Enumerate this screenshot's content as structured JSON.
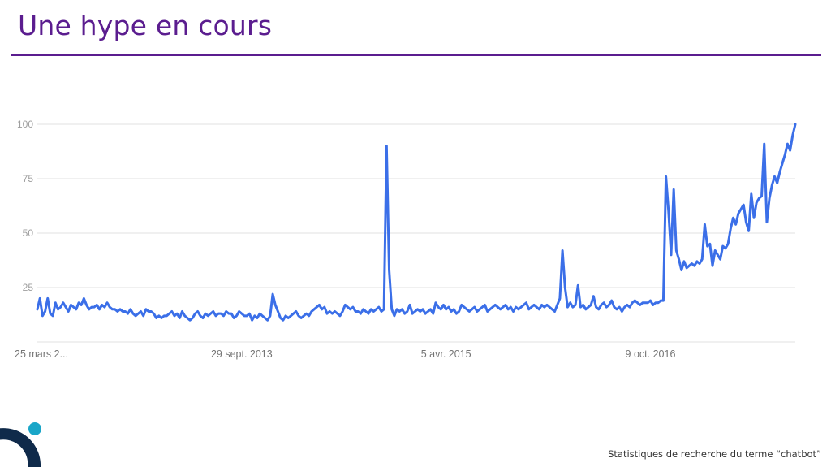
{
  "slide": {
    "title": "Une hype en cours",
    "caption": "Statistiques  de recherche  du terme  “chatbot”"
  },
  "colors": {
    "title": "#5b1d8f",
    "line": "#3b6fe8",
    "grid": "#e0e0e0",
    "logo_dark": "#0f2a4a",
    "logo_accent": "#1aa6c8"
  },
  "chart_data": {
    "type": "line",
    "title": "",
    "xlabel": "",
    "ylabel": "",
    "ylim": [
      0,
      100
    ],
    "yticks": [
      25,
      50,
      75,
      100
    ],
    "grid": true,
    "legend": "none",
    "xtick_labels": [
      {
        "date": "2012-03-25",
        "label": "25 mars 2..."
      },
      {
        "date": "2013-09-29",
        "label": "29 sept. 2013"
      },
      {
        "date": "2015-04-05",
        "label": "5 avr. 2015"
      },
      {
        "date": "2016-10-09",
        "label": "9 oct. 2016"
      }
    ],
    "series": [
      {
        "name": "chatbot",
        "start_date": "2012-03-25",
        "interval": "weekly",
        "values": [
          15,
          20,
          12,
          14,
          20,
          13,
          12,
          18,
          15,
          16,
          18,
          16,
          14,
          17,
          16,
          15,
          18,
          17,
          20,
          17,
          15,
          16,
          16,
          17,
          15,
          17,
          16,
          18,
          16,
          15,
          15,
          14,
          15,
          14,
          14,
          13,
          15,
          13,
          12,
          13,
          14,
          12,
          15,
          14,
          14,
          13,
          11,
          12,
          11,
          12,
          12,
          13,
          14,
          12,
          13,
          11,
          14,
          12,
          11,
          10,
          11,
          13,
          14,
          12,
          11,
          13,
          12,
          13,
          14,
          12,
          13,
          13,
          12,
          14,
          13,
          13,
          11,
          12,
          14,
          13,
          12,
          12,
          13,
          10,
          12,
          11,
          13,
          12,
          11,
          10,
          12,
          22,
          17,
          14,
          11,
          10,
          12,
          11,
          12,
          13,
          14,
          12,
          11,
          12,
          13,
          12,
          14,
          15,
          16,
          17,
          15,
          16,
          13,
          14,
          13,
          14,
          13,
          12,
          14,
          17,
          16,
          15,
          16,
          14,
          14,
          13,
          15,
          14,
          13,
          15,
          14,
          15,
          16,
          14,
          15,
          90,
          33,
          15,
          12,
          15,
          14,
          15,
          13,
          14,
          17,
          13,
          14,
          15,
          14,
          15,
          13,
          14,
          15,
          13,
          18,
          16,
          15,
          17,
          15,
          16,
          14,
          15,
          13,
          14,
          17,
          16,
          15,
          14,
          15,
          16,
          14,
          15,
          16,
          17,
          14,
          15,
          16,
          17,
          16,
          15,
          16,
          17,
          15,
          16,
          14,
          16,
          15,
          16,
          17,
          18,
          15,
          16,
          17,
          16,
          15,
          17,
          16,
          17,
          16,
          15,
          14,
          17,
          20,
          42,
          25,
          16,
          18,
          16,
          17,
          26,
          16,
          17,
          15,
          16,
          17,
          21,
          16,
          15,
          17,
          18,
          16,
          17,
          19,
          16,
          15,
          16,
          14,
          16,
          17,
          16,
          18,
          19,
          18,
          17,
          18,
          18,
          18,
          19,
          17,
          18,
          18,
          19,
          19,
          76,
          60,
          40,
          70,
          42,
          38,
          33,
          37,
          34,
          35,
          36,
          35,
          37,
          36,
          38,
          54,
          44,
          45,
          35,
          42,
          40,
          38,
          44,
          43,
          45,
          52,
          57,
          54,
          59,
          61,
          63,
          55,
          51,
          68,
          57,
          64,
          66,
          67,
          91,
          55,
          66,
          72,
          76,
          73,
          78,
          82,
          86,
          91,
          88,
          95,
          100
        ]
      }
    ]
  }
}
